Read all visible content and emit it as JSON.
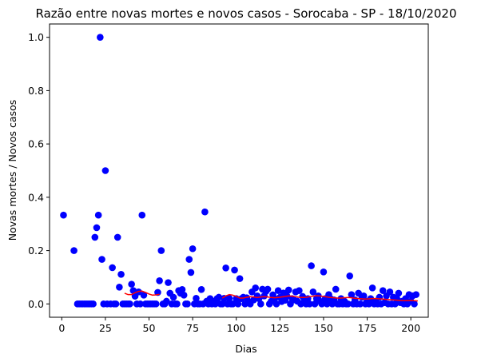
{
  "chart_data": {
    "type": "scatter",
    "title": "Razão entre novas mortes e novos casos - Sorocaba - SP - 18/10/2020",
    "xlabel": "Dias",
    "ylabel": "Novas mortes / Novos casos",
    "xlim": [
      -7,
      210
    ],
    "ylim": [
      -0.05,
      1.05
    ],
    "xticks": [
      0,
      25,
      50,
      75,
      100,
      125,
      150,
      175,
      200
    ],
    "yticks": [
      0.0,
      0.2,
      0.4,
      0.6,
      0.8,
      1.0
    ],
    "xtick_labels": [
      "0",
      "25",
      "50",
      "75",
      "100",
      "125",
      "150",
      "175",
      "200"
    ],
    "ytick_labels": [
      "0.0",
      "0.2",
      "0.4",
      "0.6",
      "0.8",
      "1.0"
    ],
    "grid": false,
    "colors": {
      "points": "#0000ff",
      "trend": "#ff0000"
    },
    "series": [
      {
        "kind": "points",
        "points": [
          [
            1,
            0.333
          ],
          [
            7,
            0.2
          ],
          [
            9,
            0
          ],
          [
            10,
            0
          ],
          [
            11,
            0
          ],
          [
            12,
            0
          ],
          [
            13,
            0
          ],
          [
            14,
            0
          ],
          [
            15,
            0
          ],
          [
            16,
            0
          ],
          [
            17,
            0
          ],
          [
            18,
            0
          ],
          [
            19,
            0.25
          ],
          [
            20,
            0.286
          ],
          [
            21,
            0.333
          ],
          [
            22,
            1.0
          ],
          [
            23,
            0.167
          ],
          [
            24,
            0
          ],
          [
            25,
            0.5
          ],
          [
            26,
            0
          ],
          [
            28,
            0
          ],
          [
            29,
            0.136
          ],
          [
            30,
            0
          ],
          [
            31,
            0
          ],
          [
            32,
            0.25
          ],
          [
            33,
            0.063
          ],
          [
            34,
            0.111
          ],
          [
            35,
            0
          ],
          [
            36,
            0
          ],
          [
            37,
            0
          ],
          [
            38,
            0
          ],
          [
            39,
            0
          ],
          [
            40,
            0.074
          ],
          [
            41,
            0.05
          ],
          [
            42,
            0.029
          ],
          [
            43,
            0
          ],
          [
            44,
            0.045
          ],
          [
            45,
            0
          ],
          [
            46,
            0.333
          ],
          [
            47,
            0.033
          ],
          [
            48,
            0
          ],
          [
            49,
            0
          ],
          [
            50,
            0
          ],
          [
            51,
            0
          ],
          [
            52,
            0
          ],
          [
            53,
            0
          ],
          [
            54,
            0
          ],
          [
            55,
            0.043
          ],
          [
            56,
            0.087
          ],
          [
            57,
            0.2
          ],
          [
            58,
            0
          ],
          [
            59,
            0
          ],
          [
            60,
            0.01
          ],
          [
            61,
            0.08
          ],
          [
            62,
            0.04
          ],
          [
            63,
            0
          ],
          [
            64,
            0.025
          ],
          [
            65,
            0
          ],
          [
            66,
            0
          ],
          [
            67,
            0.05
          ],
          [
            68,
            0.04
          ],
          [
            69,
            0.054
          ],
          [
            70,
            0.033
          ],
          [
            71,
            0
          ],
          [
            72,
            0
          ],
          [
            73,
            0.167
          ],
          [
            74,
            0.118
          ],
          [
            75,
            0.207
          ],
          [
            76,
            0
          ],
          [
            77,
            0.021
          ],
          [
            78,
            0
          ],
          [
            79,
            0
          ],
          [
            80,
            0.054
          ],
          [
            81,
            0
          ],
          [
            82,
            0.345
          ],
          [
            83,
            0.01
          ],
          [
            84,
            0
          ],
          [
            85,
            0.02
          ],
          [
            86,
            0
          ],
          [
            87,
            0.009
          ],
          [
            88,
            0
          ],
          [
            89,
            0.02
          ],
          [
            90,
            0.025
          ],
          [
            91,
            0
          ],
          [
            92,
            0
          ],
          [
            93,
            0.021
          ],
          [
            94,
            0.135
          ],
          [
            95,
            0
          ],
          [
            96,
            0.021
          ],
          [
            97,
            0
          ],
          [
            98,
            0
          ],
          [
            99,
            0.127
          ],
          [
            100,
            0.02
          ],
          [
            101,
            0
          ],
          [
            102,
            0.095
          ],
          [
            103,
            0.02
          ],
          [
            104,
            0.025
          ],
          [
            105,
            0
          ],
          [
            106,
            0.023
          ],
          [
            107,
            0.01
          ],
          [
            108,
            0
          ],
          [
            109,
            0.045
          ],
          [
            110,
            0.015
          ],
          [
            111,
            0.06
          ],
          [
            112,
            0.03
          ],
          [
            113,
            0.02
          ],
          [
            114,
            0
          ],
          [
            115,
            0.055
          ],
          [
            116,
            0.03
          ],
          [
            117,
            0.047
          ],
          [
            118,
            0.055
          ],
          [
            119,
            0
          ],
          [
            120,
            0.01
          ],
          [
            121,
            0.034
          ],
          [
            122,
            0.02
          ],
          [
            123,
            0
          ],
          [
            124,
            0.05
          ],
          [
            125,
            0.025
          ],
          [
            126,
            0.009
          ],
          [
            127,
            0.041
          ],
          [
            128,
            0.014
          ],
          [
            129,
            0.03
          ],
          [
            130,
            0.052
          ],
          [
            131,
            0
          ],
          [
            132,
            0.02
          ],
          [
            133,
            0.015
          ],
          [
            134,
            0.045
          ],
          [
            135,
            0.01
          ],
          [
            136,
            0.05
          ],
          [
            137,
            0
          ],
          [
            138,
            0.028
          ],
          [
            139,
            0.016
          ],
          [
            140,
            0
          ],
          [
            141,
            0.02
          ],
          [
            142,
            0
          ],
          [
            143,
            0.143
          ],
          [
            144,
            0.045
          ],
          [
            145,
            0
          ],
          [
            146,
            0.02
          ],
          [
            147,
            0.03
          ],
          [
            148,
            0.01
          ],
          [
            149,
            0
          ],
          [
            150,
            0.12
          ],
          [
            151,
            0.02
          ],
          [
            152,
            0
          ],
          [
            153,
            0.035
          ],
          [
            154,
            0.02
          ],
          [
            155,
            0
          ],
          [
            156,
            0.015
          ],
          [
            157,
            0.055
          ],
          [
            158,
            0
          ],
          [
            159,
            0
          ],
          [
            160,
            0.02
          ],
          [
            161,
            0
          ],
          [
            162,
            0.01
          ],
          [
            163,
            0
          ],
          [
            164,
            0
          ],
          [
            165,
            0.105
          ],
          [
            166,
            0.035
          ],
          [
            167,
            0
          ],
          [
            168,
            0.015
          ],
          [
            169,
            0
          ],
          [
            170,
            0.04
          ],
          [
            171,
            0
          ],
          [
            172,
            0.025
          ],
          [
            173,
            0.03
          ],
          [
            174,
            0
          ],
          [
            175,
            0.01
          ],
          [
            176,
            0
          ],
          [
            177,
            0.02
          ],
          [
            178,
            0.06
          ],
          [
            179,
            0
          ],
          [
            180,
            0.01
          ],
          [
            181,
            0
          ],
          [
            182,
            0.025
          ],
          [
            183,
            0
          ],
          [
            184,
            0.05
          ],
          [
            185,
            0.005
          ],
          [
            186,
            0.03
          ],
          [
            187,
            0
          ],
          [
            188,
            0.045
          ],
          [
            189,
            0
          ],
          [
            190,
            0.025
          ],
          [
            191,
            0
          ],
          [
            192,
            0.02
          ],
          [
            193,
            0.04
          ],
          [
            194,
            0.005
          ],
          [
            195,
            0.01
          ],
          [
            196,
            0
          ],
          [
            197,
            0.02
          ],
          [
            198,
            0
          ],
          [
            199,
            0.035
          ],
          [
            200,
            0.01
          ],
          [
            201,
            0.03
          ],
          [
            202,
            0
          ],
          [
            203,
            0.035
          ]
        ]
      },
      {
        "kind": "trend",
        "points": [
          [
            36,
            0.04
          ],
          [
            38,
            0.035
          ],
          [
            40,
            0.035
          ],
          [
            42,
            0.042
          ],
          [
            44,
            0.047
          ],
          [
            46,
            0.048
          ],
          [
            48,
            0.043
          ],
          [
            50,
            0.037
          ],
          [
            52,
            0.033
          ],
          [
            54,
            0.034
          ],
          [
            56,
            0.036
          ],
          [
            92,
            0.022
          ],
          [
            94,
            0.03
          ],
          [
            96,
            0.035
          ],
          [
            98,
            0.033
          ],
          [
            100,
            0.028
          ],
          [
            102,
            0.022
          ],
          [
            104,
            0.022
          ],
          [
            106,
            0.025
          ],
          [
            108,
            0.027
          ],
          [
            110,
            0.026
          ],
          [
            112,
            0.024
          ],
          [
            114,
            0.026
          ],
          [
            116,
            0.027
          ],
          [
            118,
            0.026
          ],
          [
            120,
            0.024
          ],
          [
            122,
            0.023
          ],
          [
            124,
            0.024
          ],
          [
            126,
            0.026
          ],
          [
            128,
            0.028
          ],
          [
            130,
            0.03
          ],
          [
            132,
            0.029
          ],
          [
            134,
            0.027
          ],
          [
            136,
            0.025
          ],
          [
            138,
            0.024
          ],
          [
            140,
            0.025
          ],
          [
            142,
            0.027
          ],
          [
            144,
            0.029
          ],
          [
            146,
            0.031
          ],
          [
            148,
            0.03
          ],
          [
            150,
            0.028
          ],
          [
            152,
            0.026
          ],
          [
            154,
            0.024
          ],
          [
            156,
            0.023
          ],
          [
            158,
            0.022
          ],
          [
            160,
            0.022
          ],
          [
            162,
            0.023
          ],
          [
            164,
            0.024
          ],
          [
            166,
            0.023
          ],
          [
            168,
            0.021
          ],
          [
            170,
            0.02
          ],
          [
            172,
            0.019
          ],
          [
            174,
            0.018
          ],
          [
            176,
            0.019
          ],
          [
            178,
            0.02
          ],
          [
            180,
            0.02
          ],
          [
            182,
            0.019
          ],
          [
            184,
            0.018
          ],
          [
            186,
            0.017
          ],
          [
            188,
            0.016
          ],
          [
            190,
            0.015
          ],
          [
            192,
            0.014
          ],
          [
            194,
            0.013
          ],
          [
            196,
            0.012
          ],
          [
            198,
            0.012
          ],
          [
            200,
            0.013
          ],
          [
            202,
            0.012
          ],
          [
            204,
            0.011
          ]
        ]
      }
    ]
  }
}
